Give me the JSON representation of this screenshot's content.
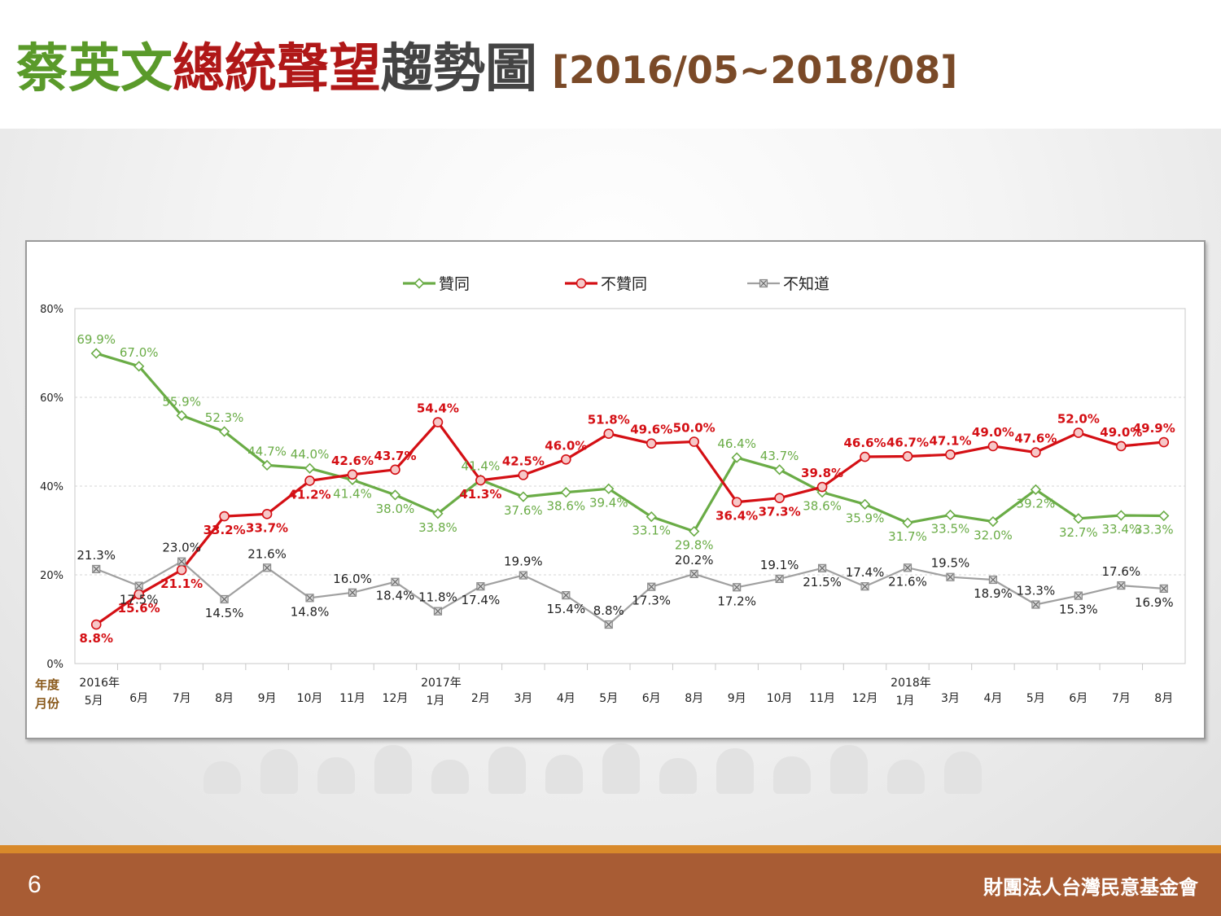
{
  "title": {
    "part1": "蔡英文",
    "part2": "總統聲望",
    "part3": "趨勢圖",
    "range": "[2016/05~2018/08]"
  },
  "footer": {
    "page_number": "6",
    "organization": "財團法人台灣民意基金會"
  },
  "colors": {
    "approve": "#6aac46",
    "disapprove": "#d40f14",
    "unknown": "#a0a0a0"
  },
  "chart_data": {
    "type": "line",
    "title": "",
    "xlabel": "",
    "ylabel": "",
    "ylim": [
      0,
      80
    ],
    "yticks": [
      "0%",
      "20%",
      "40%",
      "60%",
      "80%"
    ],
    "axis_row_labels": [
      "年度",
      "月份"
    ],
    "legend_position": "top",
    "grid": true,
    "categories": [
      "5月",
      "6月",
      "7月",
      "8月",
      "9月",
      "10月",
      "11月",
      "12月",
      "1月",
      "2月",
      "3月",
      "4月",
      "5月",
      "6月",
      "8月",
      "9月",
      "10月",
      "11月",
      "12月",
      "1月",
      "3月",
      "4月",
      "5月",
      "6月",
      "7月",
      "8月"
    ],
    "year_labels": [
      {
        "index": 0,
        "label": "2016年"
      },
      {
        "index": 8,
        "label": "2017年"
      },
      {
        "index": 19,
        "label": "2018年"
      }
    ],
    "series": [
      {
        "name": "贊同",
        "values": [
          69.9,
          67.0,
          55.9,
          52.3,
          44.7,
          44.0,
          41.4,
          38.0,
          33.8,
          41.4,
          37.6,
          38.6,
          39.4,
          33.1,
          29.8,
          46.4,
          43.7,
          38.6,
          35.9,
          31.7,
          33.5,
          32.0,
          39.2,
          32.7,
          33.4,
          33.3
        ],
        "labels": [
          "69.9%",
          "67.0%",
          "55.9%",
          "52.3%",
          "44.7%",
          "44.0%",
          "41.4%",
          "38.0%",
          "33.8%",
          "41.4%",
          "37.6%",
          "38.6%",
          "39.4%",
          "33.1%",
          "29.8%",
          "46.4%",
          "43.7%",
          "38.6%",
          "35.9%",
          "31.7%",
          "33.5%",
          "32.0%",
          "39.2%",
          "32.7%",
          "33.4%",
          "33.3%"
        ]
      },
      {
        "name": "不贊同",
        "values": [
          8.8,
          15.6,
          21.1,
          33.2,
          33.7,
          41.2,
          42.6,
          43.7,
          54.4,
          41.3,
          42.5,
          46.0,
          51.8,
          49.6,
          50.0,
          36.4,
          37.3,
          39.8,
          46.6,
          46.7,
          47.1,
          49.0,
          47.6,
          52.0,
          49.0,
          49.9
        ],
        "labels": [
          "8.8%",
          "15.6%",
          "21.1%",
          "33.2%",
          "33.7%",
          "41.2%",
          "42.6%",
          "43.7%",
          "54.4%",
          "41.3%",
          "42.5%",
          "46.0%",
          "51.8%",
          "49.6%",
          "50.0%",
          "36.4%",
          "37.3%",
          "39.8%",
          "46.6%",
          "46.7%",
          "47.1%",
          "49.0%",
          "47.6%",
          "52.0%",
          "49.0%",
          "49.9%"
        ]
      },
      {
        "name": "不知道",
        "values": [
          21.3,
          17.5,
          23.0,
          14.5,
          21.6,
          14.8,
          16.0,
          18.4,
          11.8,
          17.4,
          19.9,
          15.4,
          8.8,
          17.3,
          20.2,
          17.2,
          19.1,
          21.5,
          17.4,
          21.6,
          19.5,
          18.9,
          13.3,
          15.3,
          17.6,
          16.9
        ],
        "labels": [
          "21.3%",
          "17.5%",
          "23.0%",
          "14.5%",
          "21.6%",
          "14.8%",
          "16.0%",
          "18.4%",
          "11.8%",
          "17.4%",
          "19.9%",
          "15.4%",
          "8.8%",
          "17.3%",
          "20.2%",
          "17.2%",
          "19.1%",
          "21.5%",
          "17.4%",
          "21.6%",
          "19.5%",
          "18.9%",
          "13.3%",
          "15.3%",
          "17.6%",
          "16.9%"
        ]
      }
    ]
  }
}
